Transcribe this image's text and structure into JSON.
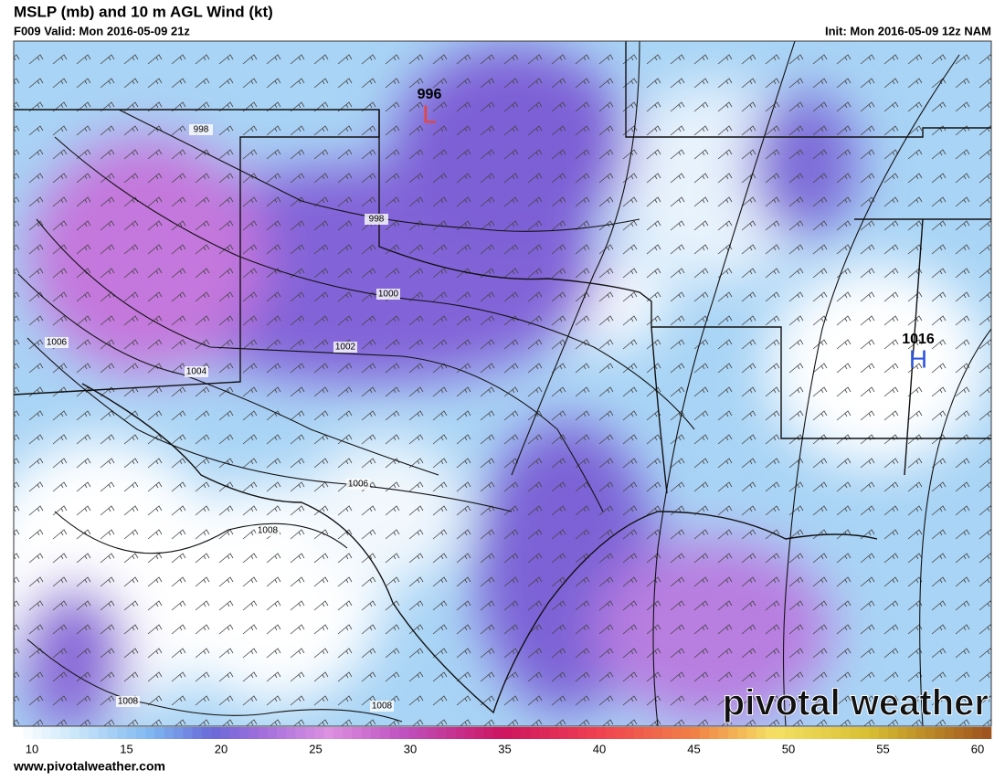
{
  "header": {
    "title": "MSLP (mb) and 10 m AGL Wind (kt)",
    "valid": "F009 Valid: Mon 2016-05-09 21z",
    "init": "Init: Mon 2016-05-09 12z NAM"
  },
  "map": {
    "isobar_labels": [
      "998",
      "998",
      "1000",
      "1002",
      "1004",
      "1006",
      "1006",
      "1008",
      "1008",
      "1008"
    ],
    "centers": [
      {
        "value": "996",
        "symbol": "L"
      },
      {
        "value": "1016",
        "symbol": "H"
      }
    ]
  },
  "colorbar": {
    "ticks": [
      10,
      15,
      20,
      25,
      30,
      35,
      40,
      45,
      50,
      55,
      60
    ]
  },
  "footer": {
    "url": "www.pivotalweather.com",
    "watermark": "pivotal weather"
  }
}
